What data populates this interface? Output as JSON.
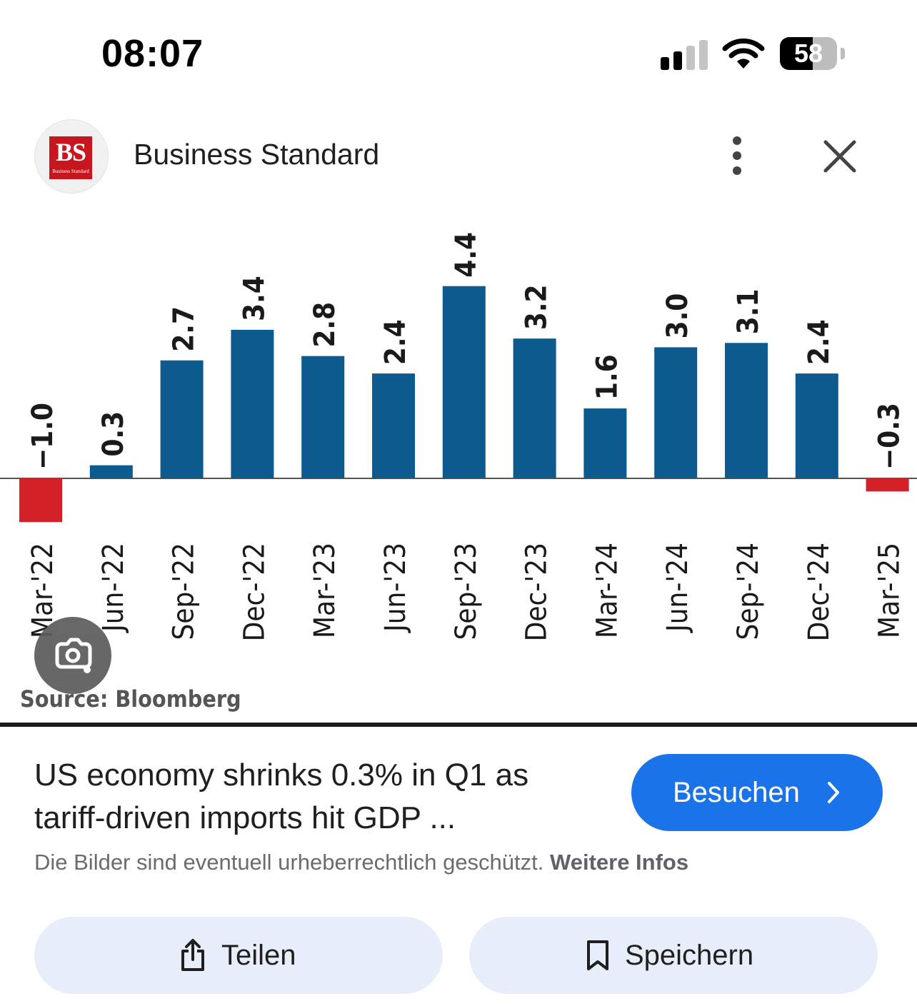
{
  "status_bar": {
    "time": "08:07",
    "battery": "58",
    "battery_level": 0.58,
    "signal_bars": 2
  },
  "header": {
    "source_name": "Business Standard",
    "logo_text": "BS",
    "logo_subtext": "Business Standard",
    "more_icon": "more-vert-icon",
    "close_icon": "close-icon"
  },
  "chart_data": {
    "type": "bar",
    "title": "",
    "xlabel": "",
    "ylabel": "",
    "categories": [
      "Mar-'22",
      "Jun-'22",
      "Sep-'22",
      "Dec-'22",
      "Mar-'23",
      "Jun-'23",
      "Sep-'23",
      "Dec-'23",
      "Mar-'24",
      "Jun-'24",
      "Sep-'24",
      "Dec-'24",
      "Mar-'25"
    ],
    "values": [
      -1.0,
      0.3,
      2.7,
      3.4,
      2.8,
      2.4,
      4.4,
      3.2,
      1.6,
      3.0,
      3.1,
      2.4,
      -0.3
    ],
    "value_labels": [
      "−1.0",
      "0.3",
      "2.7",
      "3.4",
      "2.8",
      "2.4",
      "4.4",
      "3.2",
      "1.6",
      "3.0",
      "3.1",
      "2.4",
      "−0.3"
    ],
    "ylim": [
      -1.0,
      4.4
    ],
    "grid": false,
    "labels_rotated": true,
    "colors": {
      "positive": "#0d5a8e",
      "negative": "#d42127",
      "baseline": "#555555"
    },
    "source_note": "Source: Bloomberg"
  },
  "lens_icon": "google-lens-icon",
  "caption": {
    "title": "US economy shrinks 0.3% in Q1 as tariff-driven imports hit GDP ...",
    "visit_label": "Besuchen",
    "copyright_text": "Die Bilder sind eventuell urheberrechtlich geschützt.",
    "more_info_link": "Weitere Infos"
  },
  "actions": {
    "share_label": "Teilen",
    "save_label": "Speichern"
  },
  "colors": {
    "accent": "#1a73e8",
    "action_bg": "#e8eef9",
    "brand_red": "#c8161e"
  }
}
